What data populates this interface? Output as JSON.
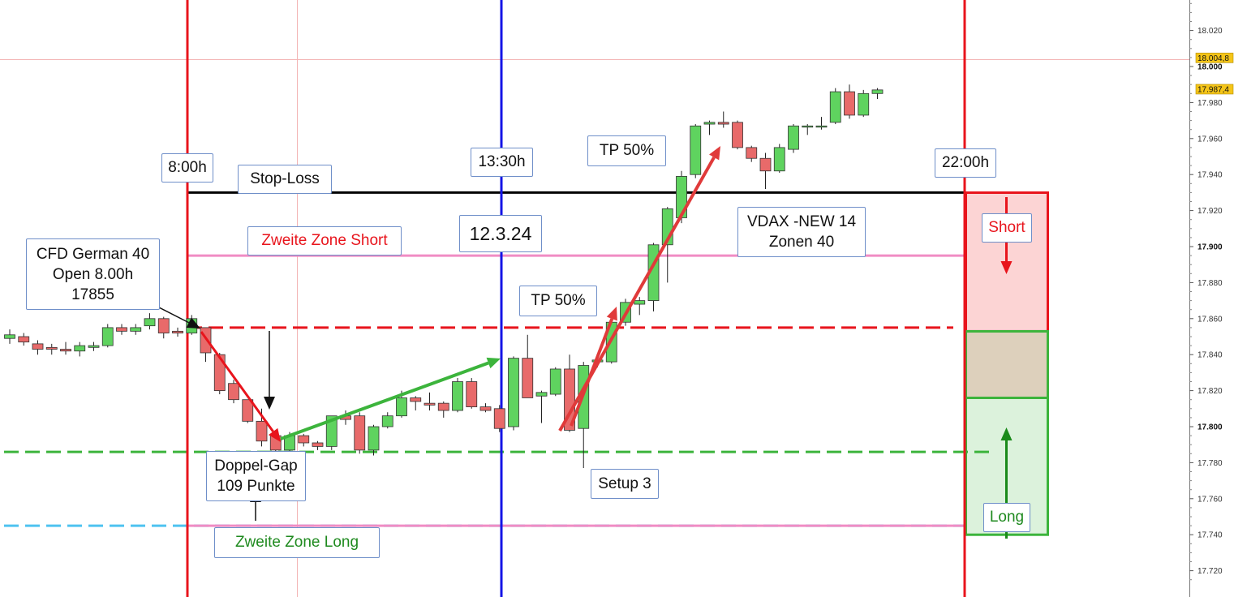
{
  "chart_data": {
    "type": "candlestick",
    "ylim": [
      17710,
      18040
    ],
    "price_axis": {
      "ticks": [
        {
          "value": 18020,
          "label": "18.020",
          "bold": false
        },
        {
          "value": 18000,
          "label": "18.000",
          "bold": true
        },
        {
          "value": 17980,
          "label": "17.980",
          "bold": false
        },
        {
          "value": 17960,
          "label": "17.960",
          "bold": false
        },
        {
          "value": 17940,
          "label": "17.940",
          "bold": false
        },
        {
          "value": 17920,
          "label": "17.920",
          "bold": false
        },
        {
          "value": 17900,
          "label": "17.900",
          "bold": true
        },
        {
          "value": 17880,
          "label": "17.880",
          "bold": false
        },
        {
          "value": 17860,
          "label": "17.860",
          "bold": false
        },
        {
          "value": 17840,
          "label": "17.840",
          "bold": false
        },
        {
          "value": 17820,
          "label": "17.820",
          "bold": false
        },
        {
          "value": 17800,
          "label": "17.800",
          "bold": true
        },
        {
          "value": 17780,
          "label": "17.780",
          "bold": false
        },
        {
          "value": 17760,
          "label": "17.760",
          "bold": false
        },
        {
          "value": 17740,
          "label": "17.740",
          "bold": false
        },
        {
          "value": 17720,
          "label": "17.720",
          "bold": false
        }
      ],
      "price_tags": [
        {
          "value": 18004.8,
          "label": "18.004,8",
          "color": "#f5c518"
        },
        {
          "value": 17987.4,
          "label": "17.987,4",
          "color": "#f5c518"
        }
      ]
    },
    "candles": [
      {
        "o": 17849,
        "h": 17854,
        "l": 17846,
        "c": 17851
      },
      {
        "o": 17850,
        "h": 17852,
        "l": 17845,
        "c": 17847
      },
      {
        "o": 17846,
        "h": 17848,
        "l": 17840,
        "c": 17843
      },
      {
        "o": 17844,
        "h": 17846,
        "l": 17840,
        "c": 17843
      },
      {
        "o": 17843,
        "h": 17847,
        "l": 17840,
        "c": 17842
      },
      {
        "o": 17842,
        "h": 17847,
        "l": 17839,
        "c": 17845
      },
      {
        "o": 17844,
        "h": 17847,
        "l": 17842,
        "c": 17845
      },
      {
        "o": 17845,
        "h": 17857,
        "l": 17844,
        "c": 17855
      },
      {
        "o": 17855,
        "h": 17857,
        "l": 17851,
        "c": 17853
      },
      {
        "o": 17853,
        "h": 17857,
        "l": 17851,
        "c": 17855
      },
      {
        "o": 17856,
        "h": 17863,
        "l": 17854,
        "c": 17860
      },
      {
        "o": 17860,
        "h": 17861,
        "l": 17849,
        "c": 17852
      },
      {
        "o": 17853,
        "h": 17855,
        "l": 17850,
        "c": 17852
      },
      {
        "o": 17852,
        "h": 17862,
        "l": 17851,
        "c": 17860
      },
      {
        "o": 17855,
        "h": 17855,
        "l": 17836,
        "c": 17841
      },
      {
        "o": 17840,
        "h": 17841,
        "l": 17818,
        "c": 17820
      },
      {
        "o": 17824,
        "h": 17826,
        "l": 17813,
        "c": 17815
      },
      {
        "o": 17815,
        "h": 17815,
        "l": 17802,
        "c": 17803
      },
      {
        "o": 17803,
        "h": 17810,
        "l": 17789,
        "c": 17792
      },
      {
        "o": 17795,
        "h": 17797,
        "l": 17785,
        "c": 17787
      },
      {
        "o": 17787,
        "h": 17797,
        "l": 17785,
        "c": 17795
      },
      {
        "o": 17795,
        "h": 17796,
        "l": 17789,
        "c": 17791
      },
      {
        "o": 17791,
        "h": 17792,
        "l": 17787,
        "c": 17789
      },
      {
        "o": 17789,
        "h": 17806,
        "l": 17787,
        "c": 17806
      },
      {
        "o": 17806,
        "h": 17809,
        "l": 17801,
        "c": 17804
      },
      {
        "o": 17806,
        "h": 17808,
        "l": 17785,
        "c": 17787
      },
      {
        "o": 17787,
        "h": 17801,
        "l": 17784,
        "c": 17800
      },
      {
        "o": 17800,
        "h": 17808,
        "l": 17799,
        "c": 17806
      },
      {
        "o": 17806,
        "h": 17820,
        "l": 17805,
        "c": 17816
      },
      {
        "o": 17816,
        "h": 17817,
        "l": 17809,
        "c": 17814
      },
      {
        "o": 17813,
        "h": 17819,
        "l": 17809,
        "c": 17812
      },
      {
        "o": 17813,
        "h": 17814,
        "l": 17805,
        "c": 17809
      },
      {
        "o": 17809,
        "h": 17827,
        "l": 17808,
        "c": 17825
      },
      {
        "o": 17825,
        "h": 17827,
        "l": 17810,
        "c": 17811
      },
      {
        "o": 17811,
        "h": 17813,
        "l": 17808,
        "c": 17809
      },
      {
        "o": 17810,
        "h": 17812,
        "l": 17797,
        "c": 17799
      },
      {
        "o": 17800,
        "h": 17839,
        "l": 17798,
        "c": 17838
      },
      {
        "o": 17838,
        "h": 17851,
        "l": 17816,
        "c": 17816
      },
      {
        "o": 17817,
        "h": 17820,
        "l": 17802,
        "c": 17819
      },
      {
        "o": 17818,
        "h": 17833,
        "l": 17817,
        "c": 17832
      },
      {
        "o": 17832,
        "h": 17840,
        "l": 17797,
        "c": 17798
      },
      {
        "o": 17799,
        "h": 17836,
        "l": 17777,
        "c": 17834
      },
      {
        "o": 17836,
        "h": 17838,
        "l": 17833,
        "c": 17837
      },
      {
        "o": 17836,
        "h": 17859,
        "l": 17835,
        "c": 17858
      },
      {
        "o": 17858,
        "h": 17871,
        "l": 17856,
        "c": 17869
      },
      {
        "o": 17868,
        "h": 17872,
        "l": 17862,
        "c": 17870
      },
      {
        "o": 17870,
        "h": 17902,
        "l": 17864,
        "c": 17901
      },
      {
        "o": 17901,
        "h": 17922,
        "l": 17880,
        "c": 17921
      },
      {
        "o": 17916,
        "h": 17942,
        "l": 17913,
        "c": 17939
      },
      {
        "o": 17940,
        "h": 17968,
        "l": 17938,
        "c": 17967
      },
      {
        "o": 17968,
        "h": 17970,
        "l": 17962,
        "c": 17969
      },
      {
        "o": 17969,
        "h": 17975,
        "l": 17966,
        "c": 17968
      },
      {
        "o": 17969,
        "h": 17970,
        "l": 17954,
        "c": 17955
      },
      {
        "o": 17955,
        "h": 17956,
        "l": 17947,
        "c": 17949
      },
      {
        "o": 17949,
        "h": 17952,
        "l": 17932,
        "c": 17942
      },
      {
        "o": 17942,
        "h": 17957,
        "l": 17941,
        "c": 17955
      },
      {
        "o": 17954,
        "h": 17968,
        "l": 17952,
        "c": 17967
      },
      {
        "o": 17967,
        "h": 17968,
        "l": 17962,
        "c": 17967
      },
      {
        "o": 17967,
        "h": 17972,
        "l": 17965,
        "c": 17967
      },
      {
        "o": 17969,
        "h": 17988,
        "l": 17968,
        "c": 17986
      },
      {
        "o": 17986,
        "h": 17990,
        "l": 17971,
        "c": 17973
      },
      {
        "o": 17973,
        "h": 17987,
        "l": 17972,
        "c": 17985
      },
      {
        "o": 17985,
        "h": 17988,
        "l": 17982,
        "c": 17987
      }
    ],
    "horizontal_levels": [
      {
        "value": 17930,
        "color": "#000000",
        "style": "solid"
      },
      {
        "value": 17895,
        "color": "#f08cc4",
        "style": "solid"
      },
      {
        "value": 17855,
        "color": "#e8141c",
        "style": "dashed"
      },
      {
        "value": 17786,
        "color": "#3cb43c",
        "style": "dashed"
      },
      {
        "value": 17745,
        "color": "#4fc3f0",
        "style": "dashed"
      },
      {
        "value": 17745,
        "color": "#f08cc4",
        "style": "solid"
      }
    ],
    "zones": [
      {
        "top": 17930,
        "bottom": 17853,
        "fill": "#fcd4d4",
        "border": "#e8141c"
      },
      {
        "top": 17853,
        "bottom": 17816,
        "fill": "#ddd0bc",
        "border": "#3cb43c"
      },
      {
        "top": 17816,
        "bottom": 17740,
        "fill": "#dcf2dc",
        "border": "#3cb43c"
      }
    ],
    "annotations": {
      "time_800": "8:00h",
      "time_1330": "13:30h",
      "time_2200": "22:00h",
      "stop_loss": "Stop-Loss",
      "zone_short": "Zweite Zone Short",
      "zone_long": "Zweite Zone Long",
      "date": "12.3.24",
      "cfd_line1": "CFD German 40",
      "cfd_line2": "Open 8.00h",
      "cfd_line3": "17855",
      "vdax_line1": "VDAX -NEW 14",
      "vdax_line2": "Zonen 40",
      "tp1": "TP 50%",
      "tp2": "TP 50%",
      "gap_line1": "Doppel-Gap",
      "gap_line2": "109 Punkte",
      "setup": "Setup 3",
      "short": "Short",
      "long": "Long"
    }
  }
}
